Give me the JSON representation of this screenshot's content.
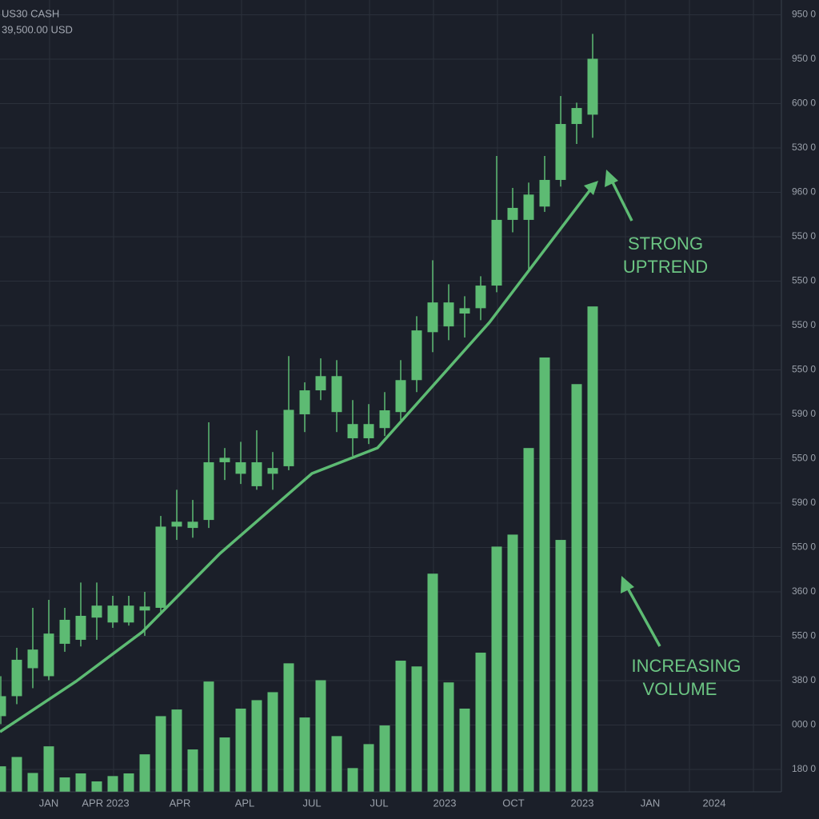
{
  "chart_data": {
    "type": "candlestick",
    "title": "US30 CASH",
    "subtitle": "39,500.00 USD",
    "color": "#5dbb73",
    "grid": true,
    "ylim": [
      0.5,
      18.3
    ],
    "yticks": [
      {
        "value": 18,
        "label": "950 0"
      },
      {
        "value": 17,
        "label": "950 0"
      },
      {
        "value": 16,
        "label": "600 0"
      },
      {
        "value": 15,
        "label": "530 0"
      },
      {
        "value": 14,
        "label": "960 0"
      },
      {
        "value": 13,
        "label": "550 0"
      },
      {
        "value": 12,
        "label": "550 0"
      },
      {
        "value": 11,
        "label": "550 0"
      },
      {
        "value": 10,
        "label": "550 0"
      },
      {
        "value": 9,
        "label": "590 0"
      },
      {
        "value": 8,
        "label": "550 0"
      },
      {
        "value": 7,
        "label": "590 0"
      },
      {
        "value": 6,
        "label": "550 0"
      },
      {
        "value": 5,
        "label": "360 0"
      },
      {
        "value": 4,
        "label": "550 0"
      },
      {
        "value": 3,
        "label": "380 0"
      },
      {
        "value": 2,
        "label": "000 0"
      },
      {
        "value": 1,
        "label": "180 0"
      }
    ],
    "xlabels": [
      "JAN",
      "APR 2023",
      "APR",
      "APL",
      "JUL",
      "JUL",
      "2023",
      "OCT",
      "2023",
      "JAN",
      "2024"
    ],
    "open": [
      2.2,
      2.65,
      3.28,
      3.1,
      3.83,
      3.92,
      4.42,
      4.31,
      4.31,
      4.58,
      4.64,
      6.47,
      6.44,
      6.62,
      7.92,
      7.66,
      7.38,
      7.66,
      7.83,
      9.0,
      9.54,
      9.05,
      8.46,
      8.46,
      8.69,
      9.05,
      9.77,
      10.85,
      10.98,
      11.27,
      11.39,
      11.9,
      13.38,
      13.38,
      13.68,
      14.28,
      15.54,
      15.75
    ],
    "high": [
      3.1,
      3.74,
      4.64,
      4.82,
      4.64,
      5.21,
      5.21,
      4.91,
      4.91,
      5.0,
      6.71,
      7.3,
      7.07,
      8.82,
      8.24,
      8.38,
      8.64,
      8.15,
      10.31,
      9.72,
      10.26,
      10.22,
      9.32,
      9.23,
      9.5,
      10.22,
      11.21,
      12.47,
      11.93,
      11.66,
      12.11,
      14.82,
      14.1,
      14.22,
      14.82,
      16.17,
      16.02,
      17.57
    ],
    "low": [
      2.02,
      2.47,
      2.83,
      3.01,
      3.65,
      3.77,
      3.92,
      4.19,
      4.24,
      4.01,
      4.55,
      6.17,
      6.22,
      6.44,
      7.52,
      7.43,
      7.3,
      7.3,
      7.74,
      8.6,
      9.32,
      8.6,
      8.06,
      8.33,
      8.51,
      8.87,
      9.5,
      10.4,
      10.67,
      10.73,
      11.12,
      11.75,
      13.1,
      12.2,
      13.56,
      14.13,
      15.09,
      15.23
    ],
    "close": [
      2.65,
      3.47,
      3.7,
      4.06,
      4.37,
      4.46,
      4.69,
      4.69,
      4.69,
      4.67,
      6.47,
      6.58,
      6.58,
      7.92,
      8.02,
      7.92,
      7.92,
      7.79,
      9.1,
      9.54,
      9.86,
      9.86,
      8.78,
      8.78,
      9.09,
      9.77,
      10.89,
      11.52,
      11.52,
      11.39,
      11.9,
      13.38,
      13.65,
      13.95,
      14.28,
      15.54,
      15.9,
      17.01
    ],
    "volume": [
      1.07,
      1.28,
      0.92,
      1.52,
      0.82,
      0.91,
      0.73,
      0.85,
      0.91,
      1.34,
      2.2,
      2.35,
      1.45,
      2.98,
      1.72,
      2.37,
      2.56,
      2.74,
      3.39,
      2.17,
      3.01,
      1.75,
      1.03,
      1.57,
      1.99,
      3.45,
      3.32,
      5.41,
      2.96,
      2.37,
      3.63,
      6.02,
      6.29,
      8.24,
      10.28,
      6.17,
      9.68,
      11.43
    ],
    "annotations": [
      {
        "lines": [
          "STRONG",
          "UPTREND"
        ]
      },
      {
        "lines": [
          "INCREASING",
          "VOLUME"
        ]
      }
    ]
  }
}
